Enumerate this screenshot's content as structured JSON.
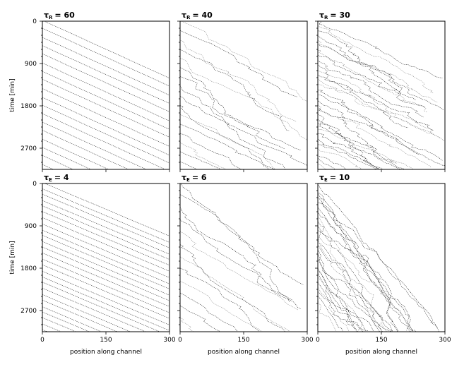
{
  "chart_data": [
    {
      "type": "line",
      "panel": "A",
      "title_symbol": "τ",
      "title_subscript": "R",
      "title_value": "= 60",
      "ylabel": "time [min]",
      "xlabel": "",
      "xlim": [
        0,
        300
      ],
      "ylim": [
        0,
        3150
      ],
      "x_ticks": [
        0,
        150,
        300
      ],
      "y_ticks": [
        0,
        900,
        1800,
        2700
      ],
      "y_inverted": true,
      "trajectory_style": "regular",
      "num_trajectories": 18,
      "interval_min": 180,
      "speed_min_per_unit": 4.1,
      "irregularity": 0.02
    },
    {
      "type": "line",
      "panel": "B",
      "title_symbol": "τ",
      "title_subscript": "R",
      "title_value": "= 40",
      "ylabel": "",
      "xlabel": "",
      "xlim": [
        0,
        300
      ],
      "ylim": [
        0,
        3150
      ],
      "x_ticks": [
        0,
        150,
        300
      ],
      "y_ticks": [
        0,
        900,
        1800,
        2700
      ],
      "y_inverted": true,
      "trajectory_style": "zigzag",
      "num_trajectories": 16,
      "interval_min": 200,
      "speed_min_per_unit": 4.0,
      "irregularity": 0.35
    },
    {
      "type": "line",
      "panel": "C",
      "title_symbol": "τ",
      "title_subscript": "R",
      "title_value": "= 30",
      "ylabel": "",
      "xlabel": "",
      "xlim": [
        0,
        300
      ],
      "ylim": [
        0,
        3150
      ],
      "x_ticks": [
        0,
        150,
        300
      ],
      "y_ticks": [
        0,
        900,
        1800,
        2700
      ],
      "y_inverted": true,
      "trajectory_style": "chaotic",
      "num_trajectories": 30,
      "interval_min": 105,
      "speed_min_per_unit": 4.2,
      "irregularity": 0.9
    },
    {
      "type": "line",
      "panel": "D",
      "title_symbol": "τ",
      "title_subscript": "E",
      "title_value": "= 4",
      "ylabel": "time [min]",
      "xlabel": "position along channel",
      "xlim": [
        0,
        300
      ],
      "ylim": [
        0,
        3150
      ],
      "x_ticks": [
        0,
        150,
        300
      ],
      "y_ticks": [
        0,
        900,
        1800,
        2700
      ],
      "y_inverted": true,
      "trajectory_style": "regular",
      "num_trajectories": 26,
      "interval_min": 125,
      "speed_min_per_unit": 3.8,
      "irregularity": 0.03
    },
    {
      "type": "line",
      "panel": "E",
      "title_symbol": "τ",
      "title_subscript": "E",
      "title_value": "= 6",
      "ylabel": "",
      "xlabel": "position along channel",
      "xlim": [
        0,
        300
      ],
      "ylim": [
        0,
        3150
      ],
      "x_ticks": [
        0,
        150,
        300
      ],
      "y_ticks": [
        0,
        900,
        1800,
        2700
      ],
      "y_inverted": true,
      "trajectory_style": "zigzag",
      "num_trajectories": 12,
      "interval_min": 260,
      "speed_min_per_unit": 5.2,
      "irregularity": 0.3
    },
    {
      "type": "line",
      "panel": "F",
      "title_symbol": "τ",
      "title_subscript": "E",
      "title_value": "= 10",
      "ylabel": "",
      "xlabel": "position along channel",
      "xlim": [
        0,
        300
      ],
      "ylim": [
        0,
        3150
      ],
      "x_ticks": [
        0,
        150,
        300
      ],
      "y_ticks": [
        0,
        900,
        1800,
        2700
      ],
      "y_inverted": true,
      "trajectory_style": "chaotic-front",
      "num_trajectories": 26,
      "interval_min": 100,
      "speed_min_per_unit": 10.5,
      "irregularity": 0.9
    }
  ]
}
